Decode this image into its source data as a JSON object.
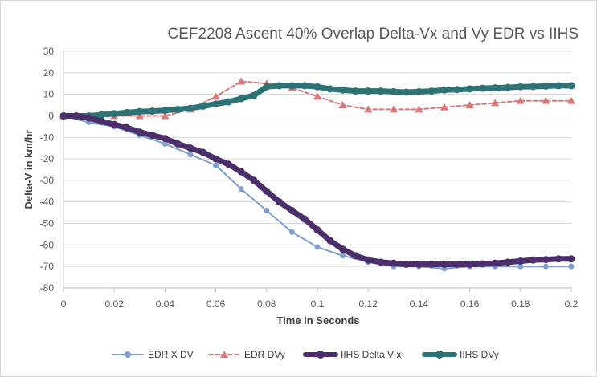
{
  "chart_data": {
    "type": "line",
    "title": "CEF2208 Ascent 40% Overlap Delta-Vx and Vy EDR vs IIHS",
    "xlabel": "Time in Seconds",
    "ylabel": "Delta-V in km/hr",
    "xlim": [
      0,
      0.2
    ],
    "ylim": [
      -80,
      30
    ],
    "x_ticks": [
      "0",
      "0.02",
      "0.04",
      "0.06",
      "0.08",
      "0.1",
      "0.12",
      "0.14",
      "0.16",
      "0.18",
      "0.2"
    ],
    "y_ticks": [
      "30",
      "20",
      "10",
      "0",
      "-10",
      "-20",
      "-30",
      "-40",
      "-50",
      "-60",
      "-70",
      "-80"
    ],
    "grid": "horizontal",
    "legend_position": "bottom",
    "series": [
      {
        "name": "EDR X DV",
        "color": "#7f9fcf",
        "style": "solid-circle-markers",
        "x": [
          0,
          0.01,
          0.02,
          0.03,
          0.04,
          0.05,
          0.06,
          0.07,
          0.08,
          0.09,
          0.1,
          0.11,
          0.12,
          0.13,
          0.14,
          0.15,
          0.16,
          0.17,
          0.18,
          0.19,
          0.2
        ],
        "y": [
          0,
          -3,
          -5,
          -9,
          -13,
          -18,
          -23,
          -34,
          -44,
          -54,
          -61,
          -65,
          -68,
          -70,
          -70,
          -71,
          -70,
          -70,
          -70,
          -70,
          -70
        ]
      },
      {
        "name": "EDR DVy",
        "color": "#d9787a",
        "style": "dashed-triangle-markers",
        "x": [
          0,
          0.01,
          0.02,
          0.03,
          0.04,
          0.05,
          0.06,
          0.07,
          0.08,
          0.09,
          0.1,
          0.11,
          0.12,
          0.13,
          0.14,
          0.15,
          0.16,
          0.17,
          0.18,
          0.19,
          0.2
        ],
        "y": [
          0,
          0,
          0,
          0,
          0,
          3,
          9,
          16,
          15,
          13,
          9,
          5,
          3,
          3,
          3,
          4,
          5,
          6,
          7,
          7,
          7
        ]
      },
      {
        "name": "IIHS Delta V x",
        "color": "#4b2f6b",
        "style": "thick-solid-dense-markers",
        "x": [
          0,
          0.005,
          0.01,
          0.015,
          0.02,
          0.025,
          0.03,
          0.035,
          0.04,
          0.045,
          0.05,
          0.055,
          0.06,
          0.065,
          0.07,
          0.075,
          0.08,
          0.085,
          0.09,
          0.095,
          0.1,
          0.105,
          0.11,
          0.115,
          0.12,
          0.125,
          0.13,
          0.135,
          0.14,
          0.145,
          0.15,
          0.155,
          0.16,
          0.165,
          0.17,
          0.175,
          0.18,
          0.185,
          0.19,
          0.195,
          0.2
        ],
        "y": [
          0,
          0,
          -1,
          -2.5,
          -4,
          -5.5,
          -7.5,
          -9,
          -10.5,
          -13,
          -15,
          -17,
          -20,
          -22.5,
          -26,
          -30,
          -35,
          -40,
          -44,
          -48,
          -53,
          -58,
          -62,
          -65,
          -67,
          -68,
          -68.5,
          -69,
          -69,
          -69,
          -69,
          -69,
          -69,
          -68.8,
          -68.5,
          -68,
          -67.5,
          -67,
          -66.8,
          -66.5,
          -66.5
        ]
      },
      {
        "name": "IIHS DVy",
        "color": "#2d7275",
        "style": "thick-solid-dense-markers",
        "x": [
          0,
          0.005,
          0.01,
          0.015,
          0.02,
          0.025,
          0.03,
          0.035,
          0.04,
          0.045,
          0.05,
          0.055,
          0.06,
          0.065,
          0.07,
          0.075,
          0.08,
          0.085,
          0.09,
          0.095,
          0.1,
          0.105,
          0.11,
          0.115,
          0.12,
          0.125,
          0.13,
          0.135,
          0.14,
          0.145,
          0.15,
          0.155,
          0.16,
          0.165,
          0.17,
          0.175,
          0.18,
          0.185,
          0.19,
          0.195,
          0.2
        ],
        "y": [
          0,
          0,
          0,
          0.5,
          1,
          1.5,
          2,
          2.2,
          2.5,
          3,
          3.5,
          4.5,
          5.5,
          6.5,
          8,
          9.5,
          13.5,
          14,
          14,
          14,
          13.5,
          12.5,
          12,
          11.5,
          11.5,
          11.5,
          11.2,
          11,
          11.2,
          11.5,
          12,
          12.2,
          12.5,
          12.8,
          13,
          13.2,
          13.5,
          13.6,
          13.8,
          14,
          14
        ]
      }
    ]
  }
}
